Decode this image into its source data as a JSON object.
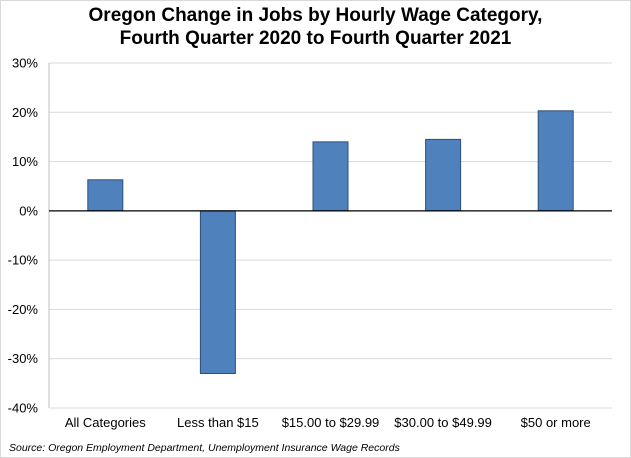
{
  "chart_data": {
    "type": "bar",
    "title_line1": "Oregon Change in Jobs by Hourly Wage Category,",
    "title_line2": "Fourth Quarter 2020 to Fourth Quarter 2021",
    "categories": [
      "All Categories",
      "Less than $15",
      "$15.00 to $29.99",
      "$30.00 to $49.99",
      "$50 or more"
    ],
    "series": [
      {
        "values": [
          6.3,
          -33.0,
          14.0,
          14.5,
          20.3
        ]
      }
    ],
    "ylim": [
      -40,
      30
    ],
    "yticks": [
      30,
      20,
      10,
      0,
      -10,
      -20,
      -30,
      -40
    ],
    "ytick_labels": [
      "30%",
      "20%",
      "10%",
      "0%",
      "-10%",
      "-20%",
      "-30%",
      "-40%"
    ],
    "grid": true,
    "bar_color": "#4f81bd",
    "bar_edge": "#2f4f7a",
    "grid_color": "#d9d9d9"
  },
  "source": "Source: Oregon Employment Department, Unemployment Insurance Wage Records"
}
